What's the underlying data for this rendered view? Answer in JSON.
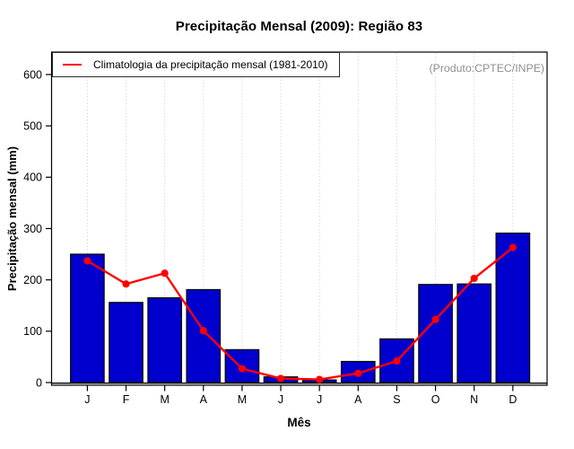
{
  "chart_data": {
    "type": "bar",
    "title": "Precipitação Mensal (2009): Região 83",
    "xlabel": "Mês",
    "ylabel": "Precipitação mensal (mm)",
    "annotation": "(Produto:CPTEC/INPE)",
    "categories": [
      "J",
      "F",
      "M",
      "A",
      "M",
      "J",
      "J",
      "A",
      "S",
      "O",
      "N",
      "D"
    ],
    "ylim": [
      0,
      600
    ],
    "yticks": [
      0,
      100,
      200,
      300,
      400,
      500,
      600
    ],
    "grid": "vertical dotted line at each month",
    "legend_position": "top-left",
    "series": [
      {
        "name": "Precipitação mensal (2009)",
        "kind": "bar",
        "color": "#0000CE",
        "values": [
          250,
          156,
          165,
          181,
          64,
          11,
          5,
          41,
          85,
          191,
          192,
          291
        ]
      },
      {
        "name": "Climatologia da precipitação mensal (1981-2010)",
        "kind": "line",
        "color": "#FF0000",
        "values": [
          237,
          192,
          213,
          101,
          27,
          8,
          6,
          18,
          42,
          123,
          203,
          263
        ]
      }
    ]
  }
}
